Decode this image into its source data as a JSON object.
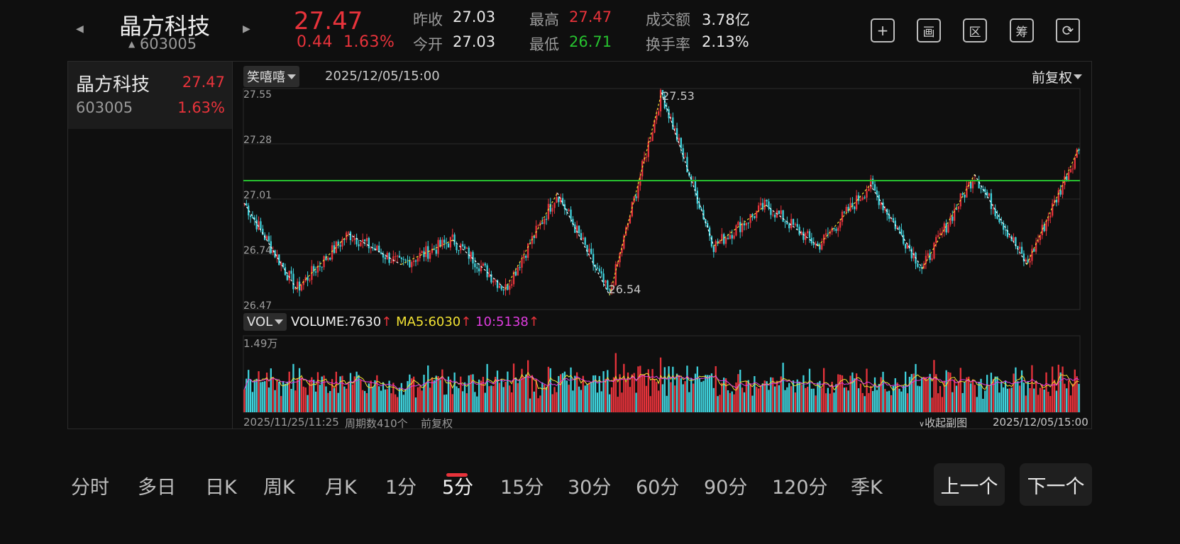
{
  "header": {
    "name": "晶方科技",
    "code": "603005",
    "price": "27.47",
    "change": "0.44",
    "change_pct": "1.63%",
    "stats": {
      "prev_close_label": "昨收",
      "prev_close": "27.03",
      "open_label": "今开",
      "open": "27.03",
      "high_label": "最高",
      "high": "27.47",
      "low_label": "最低",
      "low": "26.71",
      "turnover_label": "成交额",
      "turnover": "3.78亿",
      "turnover_rate_label": "换手率",
      "turnover_rate": "2.13%"
    },
    "icons": [
      "plus-icon",
      "draw-icon",
      "range-icon",
      "chip-icon",
      "rotate-icon"
    ],
    "icon_glyphs": [
      "+",
      "画",
      "区",
      "筹",
      "⟳"
    ]
  },
  "sidebar": {
    "name": "晶方科技",
    "price": "27.47",
    "code": "603005",
    "pct": "1.63%"
  },
  "chart_toolbar": {
    "indicator": "笑嘻嘻",
    "datetime": "2025/12/05/15:00",
    "adjust": "前复权"
  },
  "chart_data": {
    "type": "candlestick",
    "interval": "5分",
    "y_ticks": [
      "27.55",
      "27.28",
      "27.01",
      "26.74",
      "26.47"
    ],
    "ylim": [
      26.47,
      27.55
    ],
    "high_label": "27.53",
    "low_label": "26.54",
    "horizontal_line": 27.1,
    "zigzag_pivots": [
      26.99,
      26.57,
      26.84,
      26.69,
      26.81,
      26.57,
      27.04,
      26.54,
      27.53,
      26.78,
      26.98,
      26.78,
      27.08,
      26.67,
      27.13,
      26.69,
      27.26
    ],
    "colors": {
      "up": "#e8333b",
      "down": "#3fd2dc",
      "zigzag_up": "#f2e233",
      "zigzag_down": "#ffffff",
      "line": "#27c22f"
    }
  },
  "volume": {
    "chip": "VOL",
    "volume_label": "VOLUME:7630",
    "ma5_label": "MA5:6030",
    "ma10_label": "10:5138",
    "arrow": "↑",
    "max_label": "1.49万"
  },
  "footer": {
    "start": "2025/11/25/11:25",
    "count": "周期数410个",
    "adjust": "前复权",
    "collapse": "收起副图",
    "end": "2025/12/05/15:00"
  },
  "tabs": [
    "分时",
    "多日",
    "日K",
    "周K",
    "月K",
    "1分",
    "5分",
    "15分",
    "30分",
    "60分",
    "90分",
    "120分",
    "季K"
  ],
  "active_tab": "5分",
  "pager": {
    "prev": "上一个",
    "next": "下一个"
  }
}
